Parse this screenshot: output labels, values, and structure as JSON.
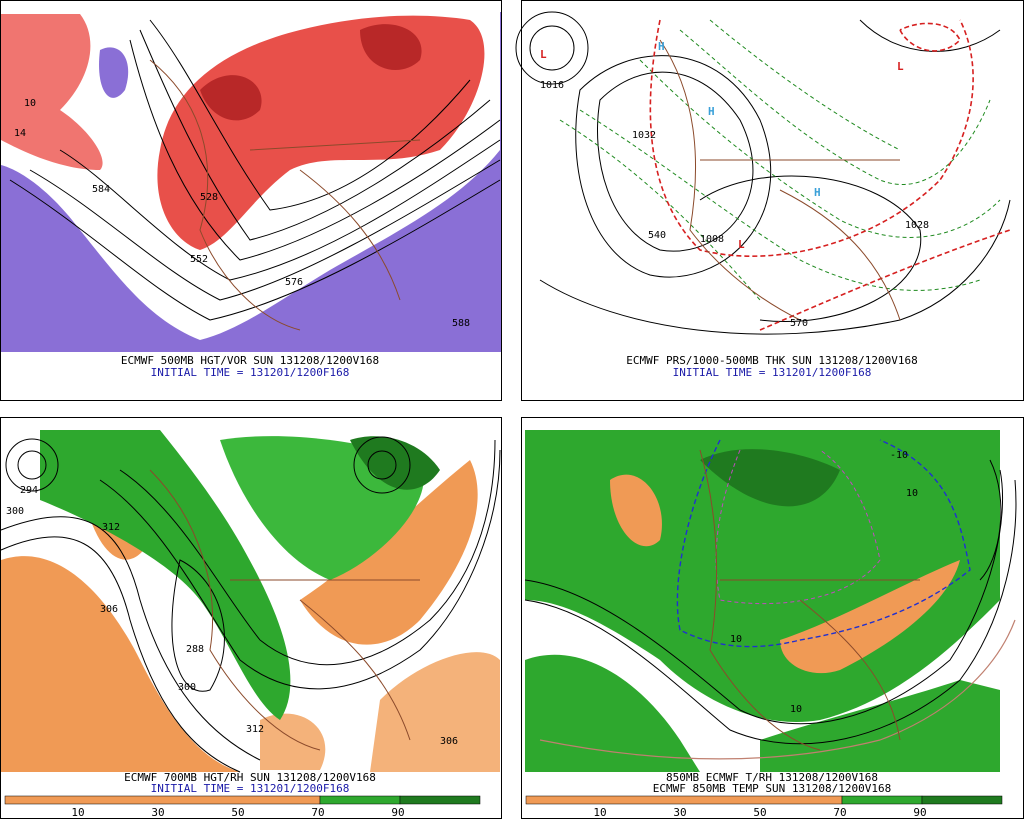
{
  "panels": [
    {
      "caption": "ECMWF 500MB HGT/VOR SUN 131208/1200V168",
      "subcaption": "INITIAL TIME = 131201/1200F168",
      "labels": [
        "552",
        "584",
        "528",
        "10",
        "14",
        "576",
        "588"
      ]
    },
    {
      "caption": "ECMWF PRS/1000-500MB THK SUN 131208/1200V168",
      "subcaption": "INITIAL TIME = 131201/1200F168",
      "labels": [
        "1016",
        "1032",
        "1008",
        "1028",
        "540",
        "570",
        "L",
        "L",
        "L",
        "H",
        "H",
        "H"
      ]
    },
    {
      "caption": "ECMWF 700MB HGT/RH SUN 131208/1200V168",
      "subcaption": "INITIAL TIME = 131201/1200F168",
      "labels": [
        "300",
        "312",
        "306",
        "294",
        "288",
        "300",
        "312",
        "306"
      ],
      "colorbar": [
        10,
        30,
        50,
        70,
        90
      ]
    },
    {
      "caption": "850MB ECMWF T/RH 131208/1200V168",
      "subcaption": "ECMWF 850MB TEMP SUN 131208/1200V168",
      "labels": [
        "10",
        "-10",
        "10",
        "10"
      ],
      "colorbar": [
        10,
        30,
        50,
        70,
        90
      ]
    }
  ]
}
